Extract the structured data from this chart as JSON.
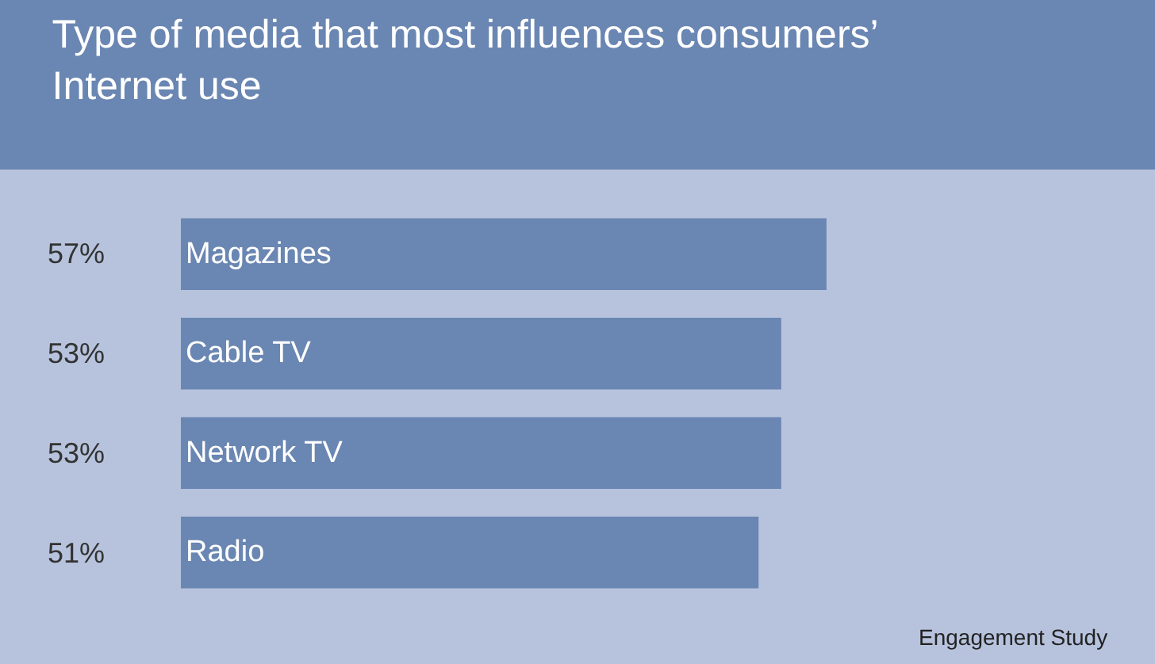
{
  "chart_data": {
    "type": "bar",
    "orientation": "horizontal",
    "title": "Type of media that most influences consumers’ Internet use",
    "categories": [
      "Magazines",
      "Cable TV",
      "Network TV",
      "Radio"
    ],
    "values": [
      57,
      53,
      53,
      51
    ],
    "color": "#6a86b2",
    "value_labels": [
      "57%",
      "53%",
      "53%",
      "51%"
    ],
    "xlim": [
      0,
      86
    ],
    "legend": false,
    "annotations": [
      "Engagement Study"
    ]
  }
}
